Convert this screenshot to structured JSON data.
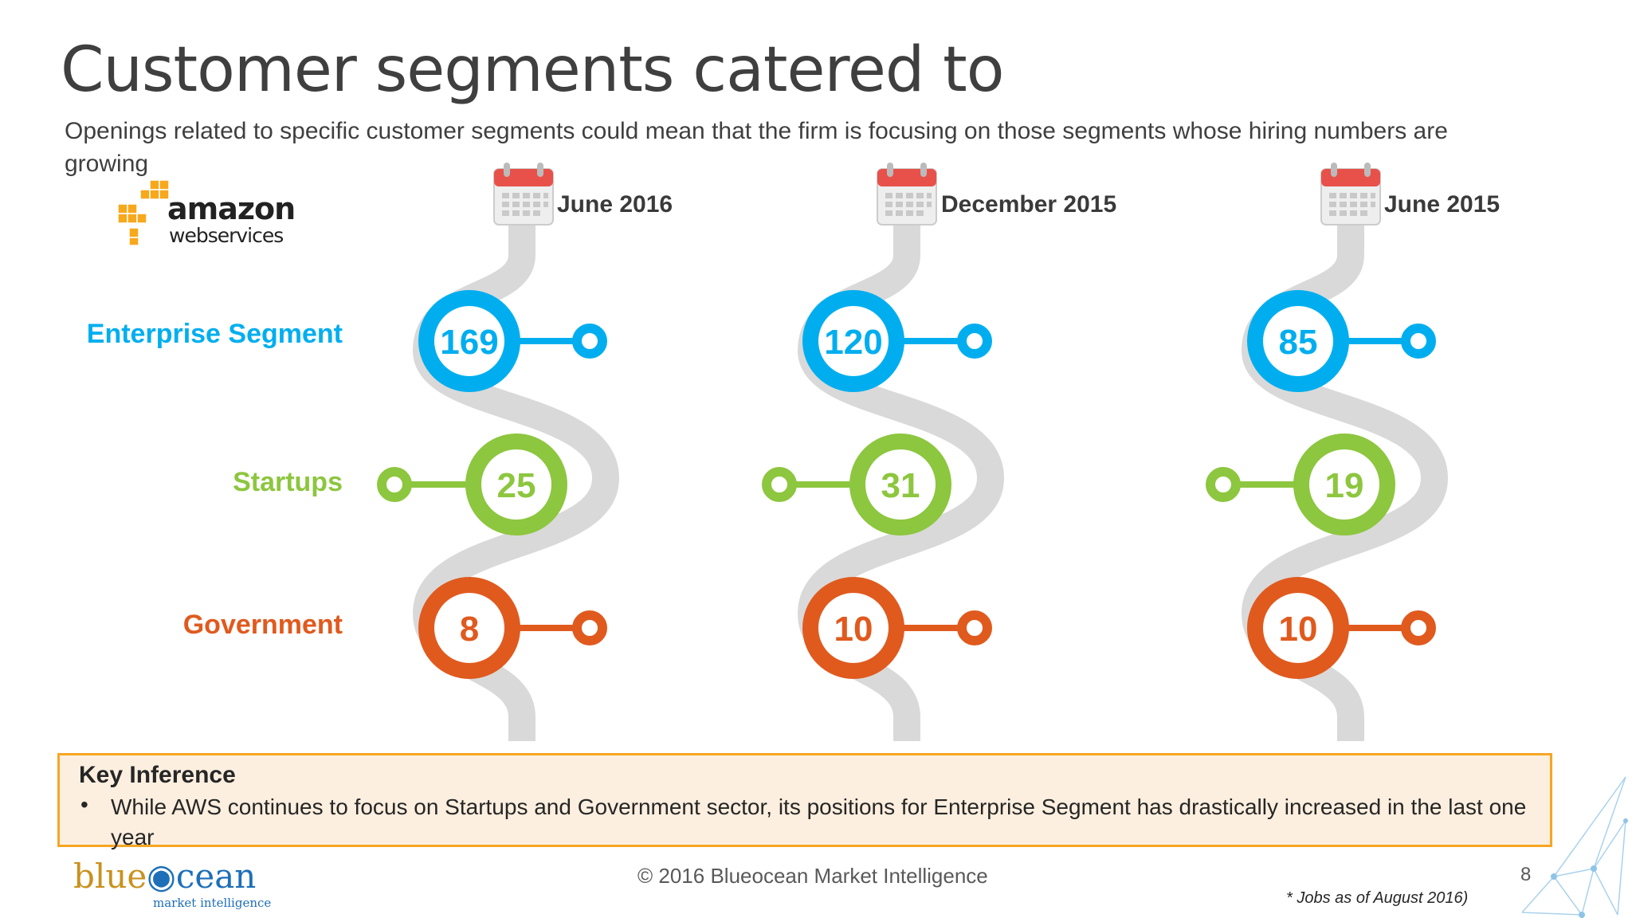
{
  "title": "Customer segments catered to",
  "subtitle": "Openings related to specific customer segments could mean that the firm is focusing on those segments whose hiring numbers are growing",
  "company_logo": {
    "line1": "amazon",
    "line2": "webservices"
  },
  "segments": [
    {
      "label": "Enterprise Segment",
      "color": "#00aeef"
    },
    {
      "label": "Startups",
      "color": "#8dc63f"
    },
    {
      "label": "Government",
      "color": "#e05a1e"
    }
  ],
  "columns": [
    {
      "date": "June 2016",
      "enterprise": "169",
      "startups": "25",
      "government": "8"
    },
    {
      "date": "December 2015",
      "enterprise": "120",
      "startups": "31",
      "government": "10"
    },
    {
      "date": "June 2015",
      "enterprise": "85",
      "startups": "19",
      "government": "10"
    }
  ],
  "inference": {
    "heading": "Key Inference",
    "bullet": "•",
    "text": "While AWS continues to focus on Startups and Government sector, its positions for Enterprise Segment has drastically increased in the last one year"
  },
  "brand": {
    "part1": "blue",
    "part2": "cean",
    "tagline": "market intelligence"
  },
  "footer": "© 2016 Blueocean Market Intelligence",
  "page_number": "8",
  "note": "* Jobs as of August 2016)",
  "colors": {
    "path": "#d9d9d9",
    "enterprise": "#00aeef",
    "startups": "#8dc63f",
    "government": "#e05a1e",
    "calendar_red": "#e8514a"
  }
}
